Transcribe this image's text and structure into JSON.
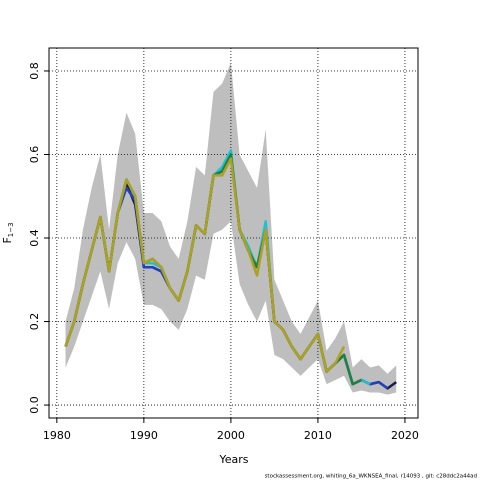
{
  "chart_data": {
    "type": "line",
    "x_label": "Years",
    "y_label": {
      "main": "F",
      "subscript": "1−3"
    },
    "footer": "stockassessment.org,  whiting_6a_WKNSEA_final,  r14093 ,  git: c28ddc2a44ad",
    "x": [
      1981,
      1982,
      1983,
      1984,
      1985,
      1986,
      1987,
      1988,
      1989,
      1990,
      1991,
      1992,
      1993,
      1994,
      1995,
      1996,
      1997,
      1998,
      1999,
      2000,
      2001,
      2002,
      2003,
      2004,
      2005,
      2006,
      2007,
      2008,
      2009,
      2010,
      2011,
      2012,
      2013,
      2014,
      2015,
      2016,
      2017,
      2018,
      2019
    ],
    "band": {
      "color": "#bebebe",
      "upper": [
        0.2,
        0.28,
        0.42,
        0.52,
        0.6,
        0.42,
        0.6,
        0.7,
        0.65,
        0.46,
        0.46,
        0.44,
        0.38,
        0.35,
        0.44,
        0.57,
        0.55,
        0.75,
        0.77,
        0.82,
        0.6,
        0.56,
        0.52,
        0.66,
        0.3,
        0.25,
        0.2,
        0.17,
        0.21,
        0.25,
        0.13,
        0.16,
        0.2,
        0.09,
        0.11,
        0.09,
        0.095,
        0.075,
        0.095
      ],
      "lower": [
        0.09,
        0.14,
        0.2,
        0.26,
        0.32,
        0.23,
        0.34,
        0.39,
        0.35,
        0.24,
        0.24,
        0.23,
        0.2,
        0.18,
        0.23,
        0.31,
        0.3,
        0.41,
        0.42,
        0.44,
        0.29,
        0.24,
        0.2,
        0.25,
        0.12,
        0.11,
        0.09,
        0.07,
        0.09,
        0.11,
        0.05,
        0.06,
        0.07,
        0.03,
        0.035,
        0.03,
        0.03,
        0.025,
        0.03
      ]
    },
    "series": [
      {
        "color": "#1a1a4e",
        "values": [
          0.14,
          0.2,
          0.29,
          0.37,
          0.45,
          0.32,
          0.46,
          0.53,
          0.48,
          0.33,
          0.33,
          0.32,
          0.28,
          0.25,
          0.32,
          0.43,
          0.41,
          0.55,
          0.56,
          0.6,
          0.42,
          0.37,
          0.33,
          0.42,
          0.2,
          0.18,
          0.14,
          0.11,
          0.14,
          0.17,
          0.08,
          0.1,
          0.12,
          0.05,
          0.06,
          0.05,
          0.055,
          0.04,
          0.055
        ]
      },
      {
        "color": "#2040c0",
        "values": [
          0.14,
          0.2,
          0.29,
          0.37,
          0.45,
          0.32,
          0.46,
          0.52,
          0.49,
          0.33,
          0.33,
          0.32,
          0.28,
          0.25,
          0.32,
          0.43,
          0.41,
          0.55,
          0.56,
          0.6,
          0.42,
          0.37,
          0.33,
          0.42,
          0.2,
          0.18,
          0.14,
          0.11,
          0.14,
          0.17,
          0.08,
          0.1,
          0.12,
          0.05,
          0.06,
          0.05,
          0.055,
          0.04,
          null
        ]
      },
      {
        "color": "#20c0d0",
        "values": [
          0.14,
          0.2,
          0.29,
          0.37,
          0.45,
          0.32,
          0.46,
          0.54,
          0.5,
          0.34,
          0.34,
          0.33,
          0.28,
          0.25,
          0.32,
          0.43,
          0.41,
          0.55,
          0.57,
          0.61,
          0.42,
          0.38,
          0.33,
          0.44,
          0.2,
          0.18,
          0.14,
          0.11,
          0.14,
          0.17,
          0.08,
          0.1,
          0.12,
          0.05,
          0.06,
          0.05,
          null,
          null,
          null
        ]
      },
      {
        "color": "#208040",
        "values": [
          0.14,
          0.2,
          0.29,
          0.37,
          0.45,
          0.32,
          0.46,
          0.54,
          0.5,
          0.34,
          0.35,
          0.33,
          0.28,
          0.25,
          0.32,
          0.43,
          0.41,
          0.55,
          0.56,
          0.6,
          0.42,
          0.37,
          0.33,
          0.42,
          0.2,
          0.18,
          0.14,
          0.11,
          0.14,
          0.17,
          0.08,
          0.1,
          0.12,
          0.05,
          0.06,
          null,
          null,
          null,
          null
        ]
      },
      {
        "color": "#b0a020",
        "values": [
          0.14,
          0.2,
          0.29,
          0.37,
          0.45,
          0.32,
          0.46,
          0.54,
          0.5,
          0.34,
          0.35,
          0.33,
          0.28,
          0.25,
          0.32,
          0.43,
          0.41,
          0.55,
          0.55,
          0.59,
          0.42,
          0.37,
          0.31,
          0.42,
          0.2,
          0.18,
          0.14,
          0.11,
          0.14,
          0.17,
          0.08,
          0.1,
          0.14,
          null,
          null,
          null,
          null,
          null,
          null
        ]
      }
    ],
    "xlim": [
      1979.1,
      2021.5
    ],
    "ylim": [
      -0.031,
      0.855
    ],
    "xticks": [
      1980,
      1990,
      2000,
      2010,
      2020
    ],
    "yticks": [
      {
        "value": 0,
        "label": "0.0"
      },
      0.2,
      0.4,
      0.6,
      0.8
    ],
    "grid": true
  }
}
